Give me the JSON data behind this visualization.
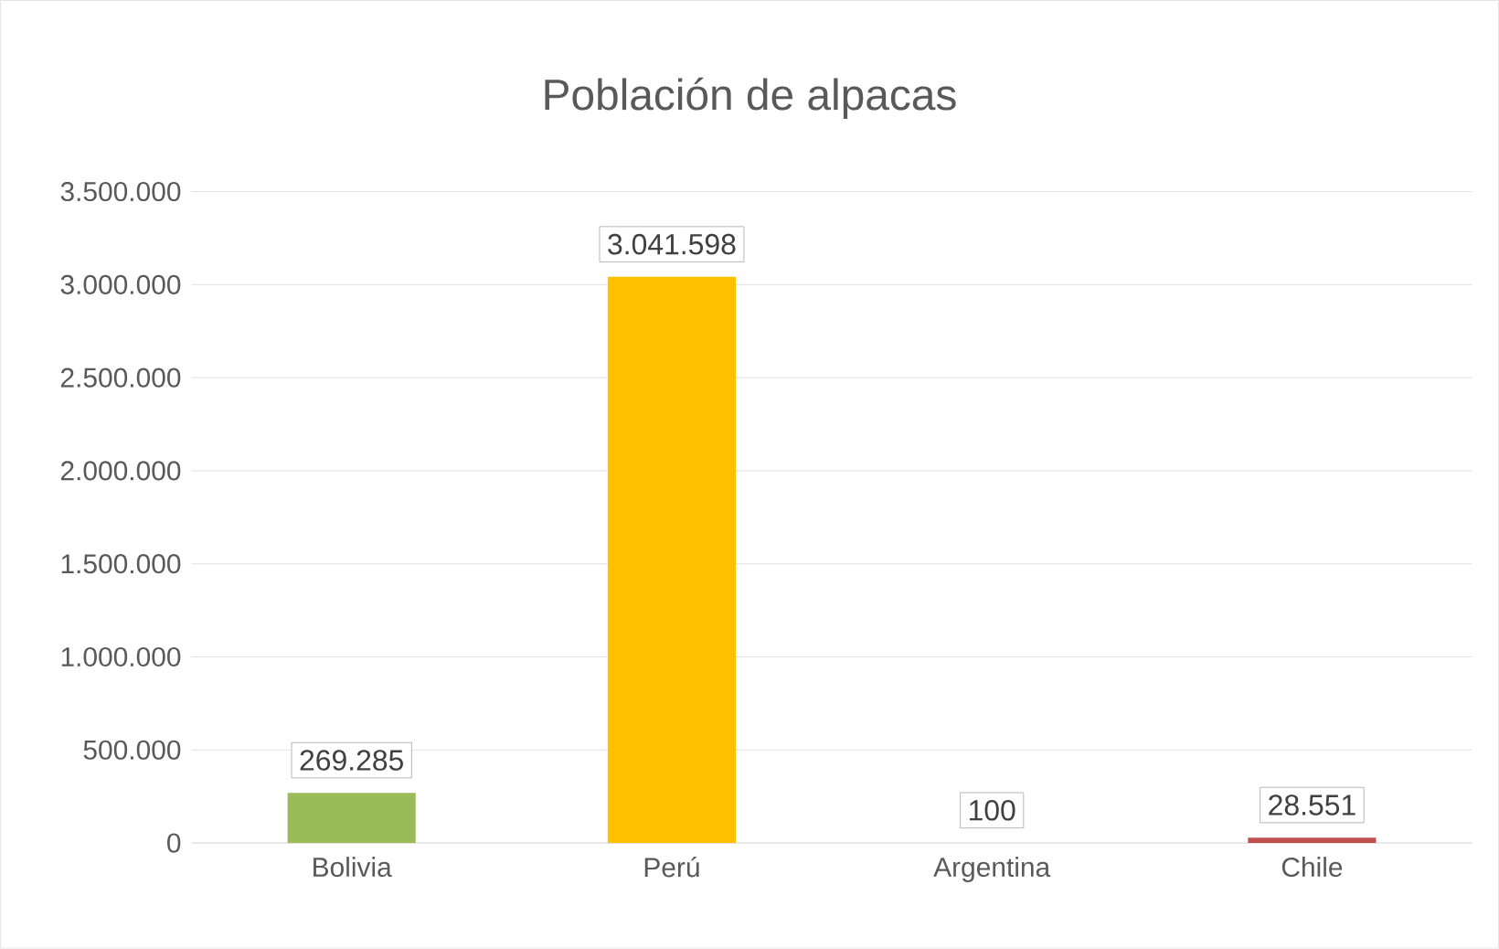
{
  "chart_data": {
    "type": "bar",
    "title": "Población de alpacas",
    "categories": [
      "Bolivia",
      "Perú",
      "Argentina",
      "Chile"
    ],
    "values": [
      269285,
      3041598,
      100,
      28551
    ],
    "colors": [
      "#9bbb59",
      "#ffc000",
      "#4f81bd",
      "#c0504d"
    ],
    "value_labels": [
      "269.285",
      "3.041.598",
      "100",
      "28.551"
    ],
    "ylim": [
      0,
      3500000
    ],
    "yticks": [
      {
        "value": 0,
        "label": "0"
      },
      {
        "value": 500000,
        "label": "500.000"
      },
      {
        "value": 1000000,
        "label": "1.000.000"
      },
      {
        "value": 1500000,
        "label": "1.500.000"
      },
      {
        "value": 2000000,
        "label": "2.000.000"
      },
      {
        "value": 2500000,
        "label": "2.500.000"
      },
      {
        "value": 3000000,
        "label": "3.000.000"
      },
      {
        "value": 3500000,
        "label": "3.500.000"
      }
    ],
    "grid": "y"
  }
}
